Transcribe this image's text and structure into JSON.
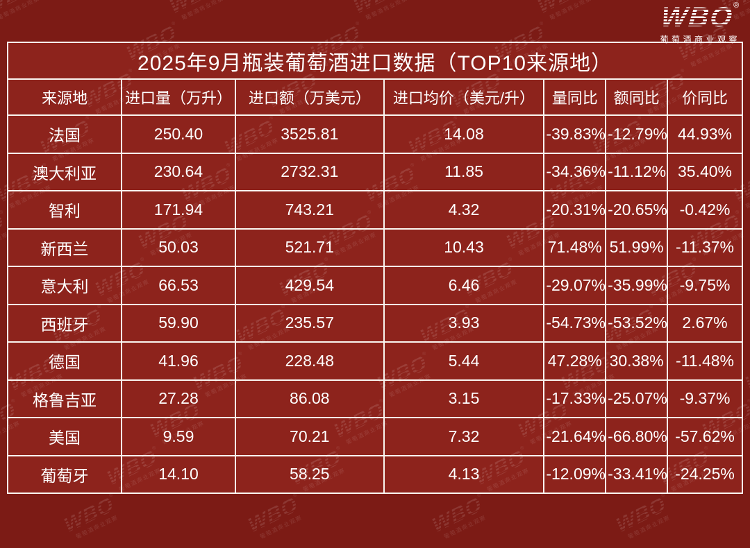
{
  "page": {
    "background_color": "#7c1b15",
    "table_background_color": "#8d231c",
    "border_color": "#faf6f1",
    "text_color": "#ffffff"
  },
  "logo": {
    "text": "WBO",
    "registered": "®",
    "subtitle": "葡萄酒商业观察"
  },
  "watermark": {
    "text": "WBO",
    "registered": "®",
    "subtitle": "葡萄酒商业观察"
  },
  "chart_data": {
    "type": "table",
    "title": "2025年9月瓶装葡萄酒进口数据（TOP10来源地）",
    "columns": [
      "来源地",
      "进口量（万升）",
      "进口额（万美元）",
      "进口均价（美元/升）",
      "量同比",
      "额同比",
      "价同比"
    ],
    "rows": [
      [
        "法国",
        "250.40",
        "3525.81",
        "14.08",
        "-39.83%",
        "-12.79%",
        "44.93%"
      ],
      [
        "澳大利亚",
        "230.64",
        "2732.31",
        "11.85",
        "-34.36%",
        "-11.12%",
        "35.40%"
      ],
      [
        "智利",
        "171.94",
        "743.21",
        "4.32",
        "-20.31%",
        "-20.65%",
        "-0.42%"
      ],
      [
        "新西兰",
        "50.03",
        "521.71",
        "10.43",
        "71.48%",
        "51.99%",
        "-11.37%"
      ],
      [
        "意大利",
        "66.53",
        "429.54",
        "6.46",
        "-29.07%",
        "-35.99%",
        "-9.75%"
      ],
      [
        "西班牙",
        "59.90",
        "235.57",
        "3.93",
        "-54.73%",
        "-53.52%",
        "2.67%"
      ],
      [
        "德国",
        "41.96",
        "228.48",
        "5.44",
        "47.28%",
        "30.38%",
        "-11.48%"
      ],
      [
        "格鲁吉亚",
        "27.28",
        "86.08",
        "3.15",
        "-17.33%",
        "-25.07%",
        "-9.37%"
      ],
      [
        "美国",
        "9.59",
        "70.21",
        "7.32",
        "-21.64%",
        "-66.80%",
        "-57.62%"
      ],
      [
        "葡萄牙",
        "14.10",
        "58.25",
        "4.13",
        "-12.09%",
        "-33.41%",
        "-24.25%"
      ]
    ]
  }
}
